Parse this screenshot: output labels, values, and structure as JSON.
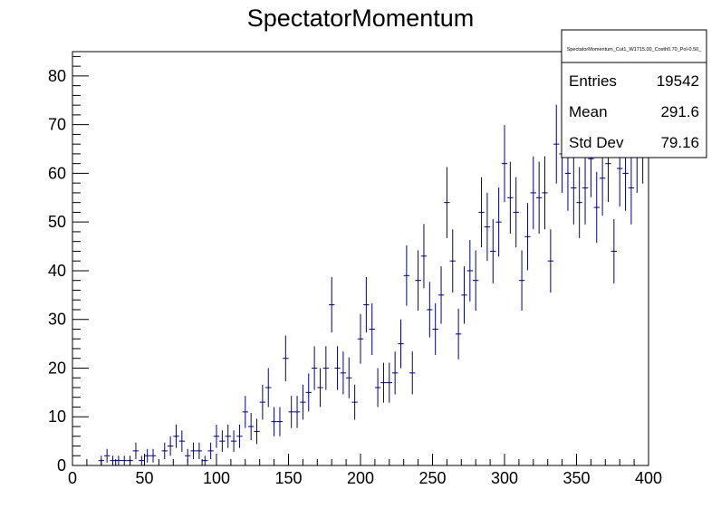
{
  "chart_data": {
    "type": "scatter",
    "title": "SpectatorMomentum",
    "xlabel": "",
    "ylabel": "",
    "xlim": [
      0,
      400
    ],
    "ylim": [
      0,
      85
    ],
    "x_ticks": [
      0,
      50,
      100,
      150,
      200,
      250,
      300,
      350,
      400
    ],
    "y_ticks": [
      0,
      10,
      20,
      30,
      40,
      50,
      60,
      70,
      80
    ],
    "grid": false,
    "marker_color": "#000080",
    "bin_width": 4,
    "series": [
      {
        "x": [
          20,
          24,
          28,
          32,
          36,
          40,
          44,
          48,
          52,
          56,
          60,
          64,
          68,
          72,
          76,
          80,
          84,
          88,
          92,
          96,
          100,
          104,
          108,
          112,
          116,
          120,
          124,
          128,
          132,
          136,
          140,
          144,
          148,
          152,
          156,
          160,
          164,
          168,
          172,
          176,
          180,
          184,
          188,
          192,
          196,
          200,
          204,
          208,
          212,
          216,
          220,
          224,
          228,
          232,
          236,
          240,
          244,
          248,
          252,
          256,
          260,
          264,
          268,
          272,
          276,
          280,
          284,
          288,
          292,
          296,
          300,
          304,
          308,
          312,
          316,
          320,
          324,
          328,
          332,
          336,
          340,
          344,
          348,
          352,
          356,
          360,
          364,
          368,
          372,
          376,
          380,
          384,
          388,
          392,
          396
        ],
        "values": [
          1,
          2,
          1,
          1,
          1,
          1,
          3,
          1,
          2,
          2,
          0,
          3,
          4,
          6,
          5,
          2,
          3,
          3,
          1,
          3,
          6,
          5,
          6,
          5,
          6,
          11,
          8,
          7,
          13,
          16,
          9,
          9,
          22,
          11,
          11,
          13,
          15,
          20,
          16,
          20,
          33,
          20,
          19,
          18,
          13,
          26,
          33,
          28,
          16,
          17,
          17,
          19,
          25,
          39,
          19,
          38,
          43,
          32,
          28,
          35,
          54,
          42,
          27,
          35,
          40,
          38,
          52,
          49,
          44,
          50,
          62,
          55,
          52,
          38,
          47,
          56,
          55,
          56,
          42,
          66,
          64,
          60,
          57,
          54,
          57,
          63,
          53,
          59,
          62,
          44,
          61,
          60,
          57,
          64,
          66
        ],
        "errors": [
          1,
          1.4,
          1,
          1,
          1,
          1,
          1.7,
          1,
          1.4,
          1.4,
          0,
          1.7,
          2,
          2.4,
          2.2,
          1.4,
          1.7,
          1.7,
          1,
          1.7,
          2.4,
          2.2,
          2.4,
          2.2,
          2.4,
          3.3,
          2.8,
          2.6,
          3.6,
          4,
          3,
          3,
          4.7,
          3.3,
          3.3,
          3.6,
          3.9,
          4.5,
          4,
          4.5,
          5.7,
          4.5,
          4.4,
          4.2,
          3.6,
          5.1,
          5.7,
          5.3,
          4,
          4.1,
          4.1,
          4.4,
          5,
          6.2,
          4.4,
          6.2,
          6.6,
          5.7,
          5.3,
          5.9,
          7.3,
          6.5,
          5.2,
          5.9,
          6.3,
          6.2,
          7.2,
          7,
          6.6,
          7.1,
          7.9,
          7.4,
          7.2,
          6.2,
          6.9,
          7.5,
          7.4,
          7.5,
          6.5,
          8.1,
          8,
          7.7,
          7.5,
          7.3,
          7.5,
          7.9,
          7.3,
          7.7,
          7.9,
          6.6,
          7.8,
          7.7,
          7.5,
          8,
          8.1
        ]
      }
    ]
  },
  "stats_box": {
    "title": "SpectatorMomentum_Cut1_W1715.00_Costh0.70_Pol-0.50_",
    "rows": [
      {
        "label": "Entries",
        "value": "19542"
      },
      {
        "label": "Mean",
        "value": "291.6"
      },
      {
        "label": "Std Dev",
        "value": "79.16"
      }
    ]
  }
}
